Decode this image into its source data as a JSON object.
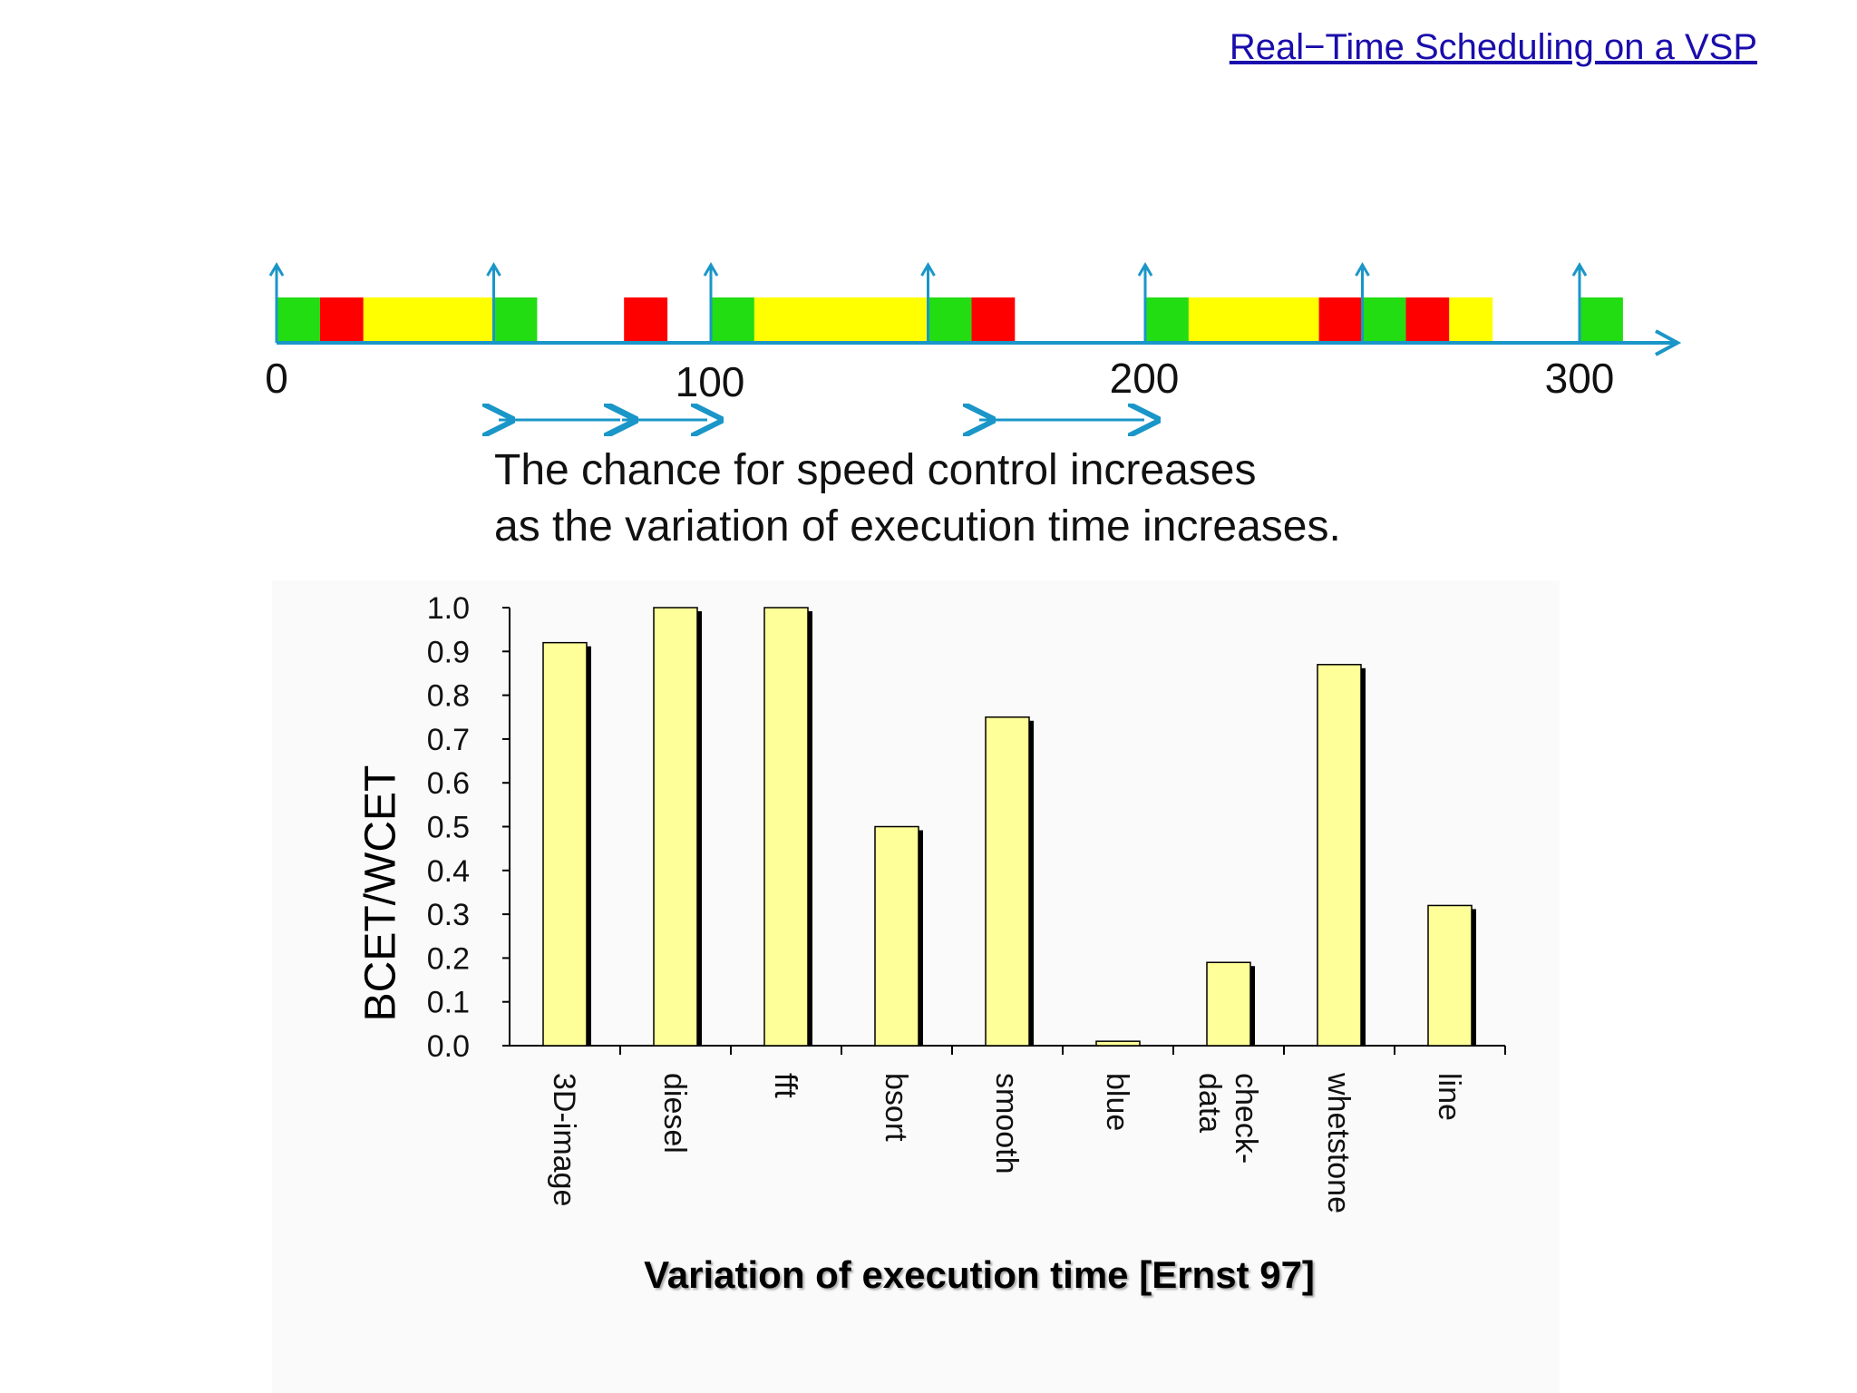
{
  "header": {
    "link_text": "Real−Time Scheduling on a VSP"
  },
  "timeline": {
    "ticks": [
      "0",
      "100",
      "200",
      "300"
    ],
    "colors": {
      "green": "#22dd11",
      "red": "#ff0000",
      "yellow": "#ffff00",
      "axis": "#1a96c8"
    }
  },
  "caption": {
    "line1": "The chance for speed control increases",
    "line2": "as the variation of execution time increases."
  },
  "chart_data": {
    "type": "bar",
    "categories": [
      "3D-image",
      "diesel",
      "fft",
      "bsort",
      "smooth",
      "blue",
      "check-\ndata",
      "whetstone",
      "line"
    ],
    "values": [
      0.92,
      1.0,
      1.0,
      0.5,
      0.75,
      0.01,
      0.19,
      0.87,
      0.32
    ],
    "ylim": [
      0,
      1.0
    ],
    "yticks": [
      "0.0",
      "0.1",
      "0.2",
      "0.3",
      "0.4",
      "0.5",
      "0.6",
      "0.7",
      "0.8",
      "0.9",
      "1.0"
    ],
    "ylabel": "BCET/WCET",
    "xlabel": "Variation of execution time [Ernst 97]",
    "bar_color": "#ffff99",
    "grid": false,
    "legend": "none"
  }
}
